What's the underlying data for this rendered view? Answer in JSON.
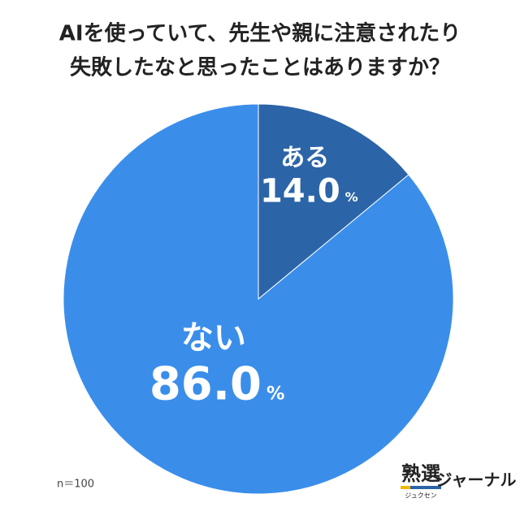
{
  "chart_data": {
    "type": "pie",
    "title": [
      "AIを使っていて、先生や親に注意されたり",
      "失敗したなと思ったことはありますか？"
    ],
    "categories": [
      "ある",
      "ない"
    ],
    "values": [
      14,
      86
    ],
    "value_labels": [
      "14.0",
      "86.0"
    ],
    "unit": "%",
    "colors": [
      "#2c64a8",
      "#3a8eea"
    ],
    "note": "n＝100"
  },
  "logo": {
    "main": "熟選",
    "sub": "ジュクセン",
    "suffix": "ジャーナル"
  }
}
